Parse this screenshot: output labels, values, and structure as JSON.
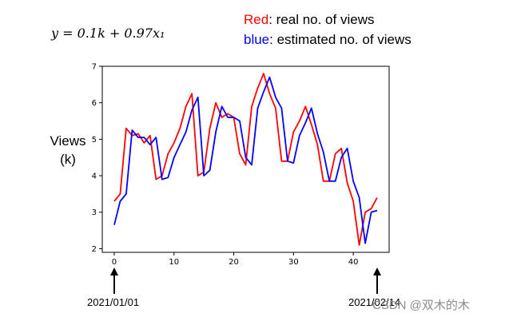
{
  "formula": "y = 0.1k + 0.97x₁",
  "legend": {
    "red_key": "Red",
    "red_text": ": real no. of views",
    "blue_key": "blue",
    "blue_text": ":  estimated no. of views"
  },
  "ylabel_line1": "Views",
  "ylabel_line2": "(k)",
  "date_start": "2021/01/01",
  "date_end": "2021/02/14",
  "watermark": "CSDN @双木的木",
  "colors": {
    "real": "#ff0000",
    "estimated": "#0000ff",
    "axis": "#000000"
  },
  "chart_data": {
    "type": "line",
    "xlim": [
      -2,
      46
    ],
    "ylim": [
      1.9,
      7
    ],
    "xticks": [
      0,
      10,
      20,
      30,
      40
    ],
    "yticks": [
      2,
      3,
      4,
      5,
      6,
      7
    ],
    "grid": false,
    "series": [
      {
        "name": "real",
        "color": "#ff0000",
        "x": [
          0,
          1,
          2,
          3,
          4,
          5,
          6,
          7,
          8,
          9,
          10,
          11,
          12,
          13,
          14,
          15,
          16,
          17,
          18,
          19,
          20,
          21,
          22,
          23,
          24,
          25,
          26,
          27,
          28,
          29,
          30,
          31,
          32,
          33,
          34,
          35,
          36,
          37,
          38,
          39,
          40,
          41,
          42,
          43,
          44
        ],
        "y": [
          3.3,
          3.5,
          5.3,
          5.1,
          5.15,
          4.9,
          5.1,
          3.9,
          4.0,
          4.6,
          4.9,
          5.3,
          5.9,
          6.25,
          4.0,
          4.1,
          5.3,
          6.0,
          5.6,
          5.7,
          5.6,
          4.6,
          4.3,
          5.9,
          6.4,
          6.8,
          6.25,
          5.85,
          4.4,
          4.4,
          5.2,
          5.5,
          5.9,
          5.4,
          4.85,
          3.85,
          3.85,
          4.6,
          4.75,
          3.8,
          3.3,
          2.1,
          3.0,
          3.1,
          3.4
        ]
      },
      {
        "name": "estimated",
        "color": "#0000ff",
        "x": [
          0,
          1,
          2,
          3,
          4,
          5,
          6,
          7,
          8,
          9,
          10,
          11,
          12,
          13,
          14,
          15,
          16,
          17,
          18,
          19,
          20,
          21,
          22,
          23,
          24,
          25,
          26,
          27,
          28,
          29,
          30,
          31,
          32,
          33,
          34,
          35,
          36,
          37,
          38,
          39,
          40,
          41,
          42,
          43,
          44
        ],
        "y": [
          2.65,
          3.3,
          3.5,
          5.25,
          5.05,
          5.05,
          4.85,
          5.05,
          3.9,
          3.95,
          4.5,
          4.85,
          5.2,
          5.8,
          6.15,
          4.0,
          4.15,
          5.2,
          5.9,
          5.6,
          5.6,
          5.5,
          4.5,
          4.3,
          5.85,
          6.3,
          6.7,
          6.15,
          5.85,
          4.4,
          4.35,
          5.1,
          5.45,
          5.85,
          5.15,
          4.65,
          3.85,
          3.85,
          4.5,
          4.75,
          3.85,
          3.4,
          2.15,
          3.0,
          3.05
        ]
      }
    ]
  }
}
